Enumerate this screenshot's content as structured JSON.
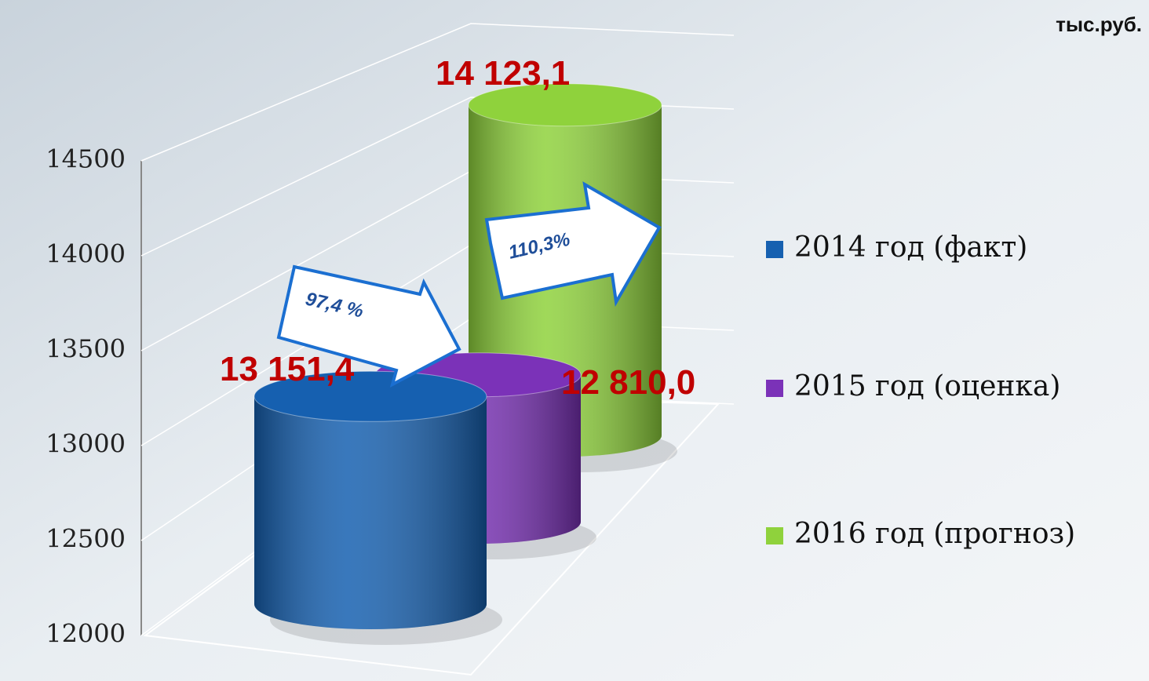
{
  "chart_data": {
    "type": "bar",
    "unit": "тыс.руб.",
    "series": [
      {
        "name": "2014 год (факт)",
        "color": "#1660b0",
        "values": [
          13151.4
        ],
        "value_labels": [
          "13 151,4"
        ]
      },
      {
        "name": "2015 год (оценка)",
        "color": "#7b32b8",
        "values": [
          12810.0
        ],
        "value_labels": [
          "12 810,0"
        ]
      },
      {
        "name": "2016 год (прогноз)",
        "color": "#8fd23c",
        "values": [
          14123.1
        ],
        "value_labels": [
          "14 123,1"
        ]
      }
    ],
    "annotations": [
      "97,4 %",
      "110,3%"
    ],
    "ylim": [
      12000,
      14500
    ],
    "yticks": [
      12000,
      12500,
      13000,
      13500,
      14000,
      14500
    ],
    "grid": true
  }
}
